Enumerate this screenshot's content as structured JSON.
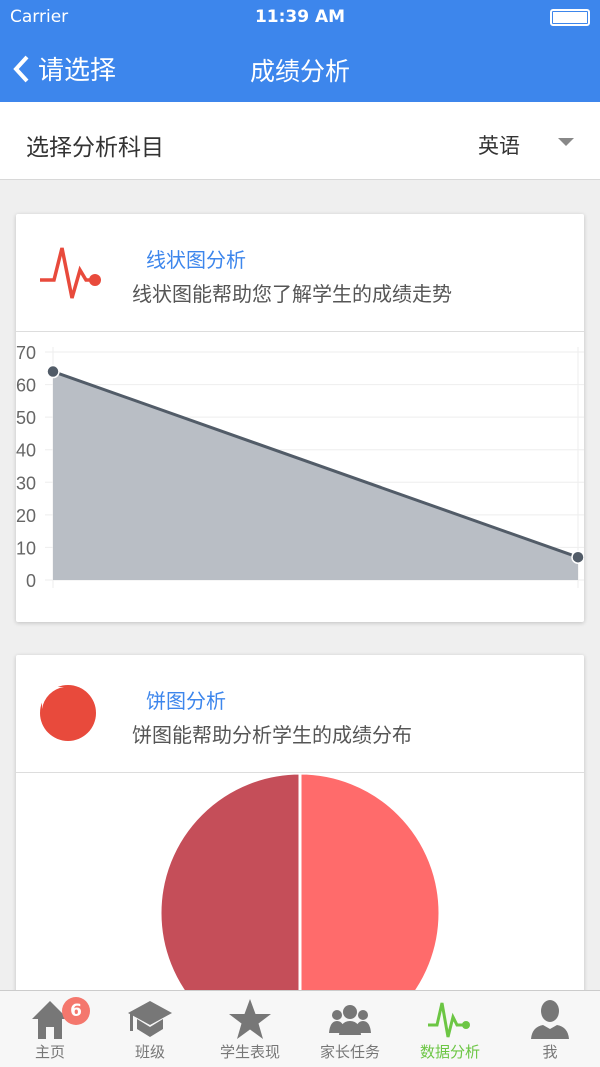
{
  "status_bar": {
    "carrier": "Carrier",
    "time": "11:39 AM"
  },
  "nav": {
    "back_label": "请选择",
    "title": "成绩分析"
  },
  "selector": {
    "label": "选择分析科目",
    "value": "英语"
  },
  "line_card": {
    "title": "线状图分析",
    "description": "线状图能帮助您了解学生的成绩走势",
    "icon": "heartbeat-icon"
  },
  "pie_card": {
    "title": "饼图分析",
    "description": "饼图能帮助分析学生的成绩分布",
    "icon": "pie-chart-icon"
  },
  "colors": {
    "accent": "#3d86ec",
    "active_tab": "#6cc644",
    "line": "#525c68",
    "area": "#b9bec5",
    "pie_a": "#c54e59",
    "pie_b": "#ff6b6b",
    "badge": "#f4776d"
  },
  "chart_data": [
    {
      "type": "area",
      "x": [
        "",
        ""
      ],
      "values": [
        64,
        7
      ],
      "ylim": [
        0,
        70
      ],
      "yticks": [
        "0",
        "10",
        "20",
        "30",
        "40",
        "50",
        "60",
        "70"
      ],
      "grid": true
    },
    {
      "type": "pie",
      "values": [
        50,
        50
      ]
    }
  ],
  "tabbar": {
    "items": [
      {
        "label": "主页",
        "icon": "home-icon",
        "badge": "6"
      },
      {
        "label": "班级",
        "icon": "graduation-cap-icon"
      },
      {
        "label": "学生表现",
        "icon": "star-icon"
      },
      {
        "label": "家长任务",
        "icon": "group-icon"
      },
      {
        "label": "数据分析",
        "icon": "heartbeat-icon",
        "active": true
      },
      {
        "label": "我",
        "icon": "user-icon"
      }
    ]
  }
}
